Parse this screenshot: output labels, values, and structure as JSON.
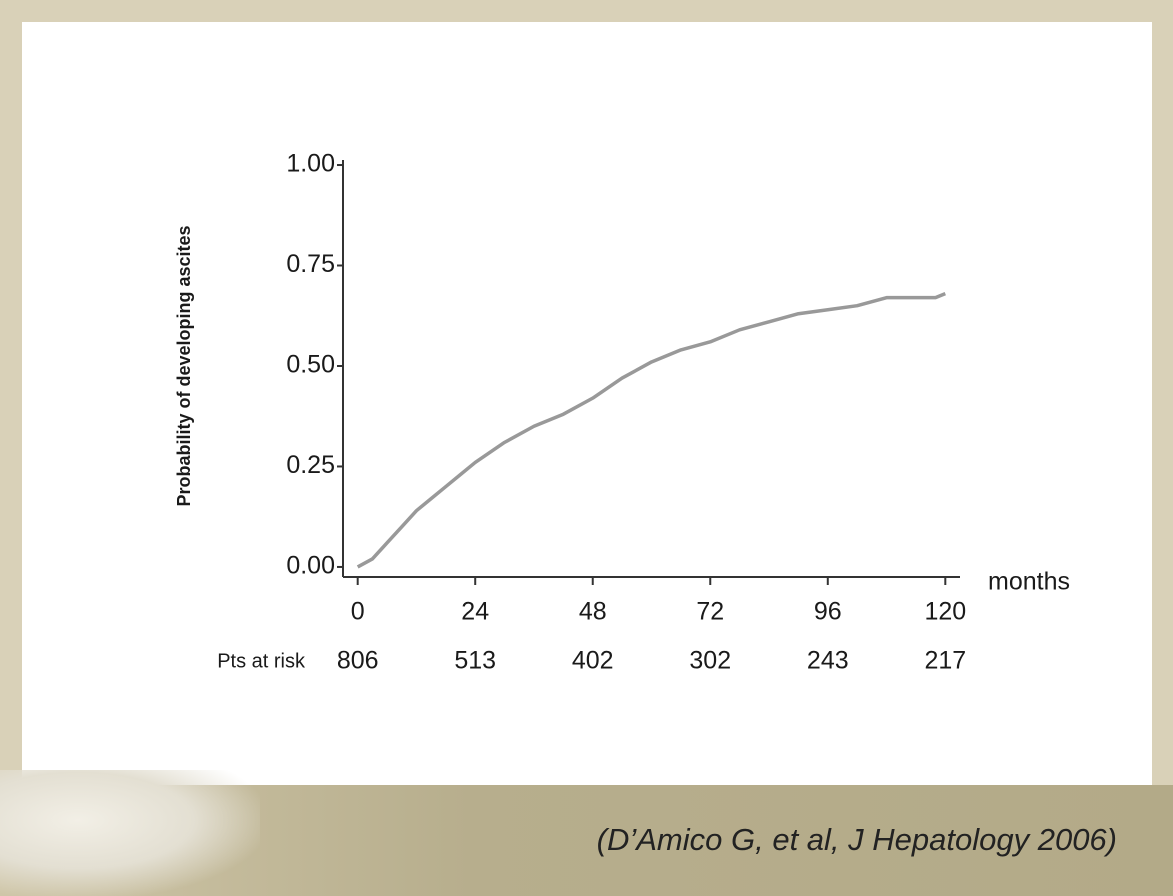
{
  "chart_data": {
    "type": "line",
    "ylabel": "Probability of developing ascites",
    "xlabel": "months",
    "x": [
      0,
      3,
      6,
      9,
      12,
      15,
      18,
      21,
      24,
      30,
      36,
      42,
      48,
      54,
      60,
      66,
      72,
      78,
      84,
      90,
      96,
      102,
      108,
      114,
      118,
      120
    ],
    "series": [
      {
        "color": "#999999",
        "values": [
          0.0,
          0.02,
          0.06,
          0.1,
          0.14,
          0.17,
          0.2,
          0.23,
          0.26,
          0.31,
          0.35,
          0.38,
          0.42,
          0.47,
          0.51,
          0.54,
          0.56,
          0.59,
          0.61,
          0.63,
          0.64,
          0.65,
          0.67,
          0.67,
          0.67,
          0.68
        ]
      }
    ],
    "xlim": [
      -3,
      123
    ],
    "xticks": [
      0,
      24,
      48,
      72,
      96,
      120
    ],
    "ylim": [
      -0.025,
      1.0125
    ],
    "yticks": [
      {
        "value": 0,
        "label": "0.00"
      },
      {
        "value": 0.25,
        "label": "0.25"
      },
      {
        "value": 0.5,
        "label": "0.50"
      },
      {
        "value": 0.75,
        "label": "0.75"
      },
      {
        "value": 1,
        "label": "1.00"
      }
    ],
    "grid": false,
    "at_risk": {
      "label": "Pts at risk",
      "values": [
        806,
        513,
        402,
        302,
        243,
        217
      ]
    }
  },
  "footer": {
    "citation": "(D’Amico G, et al, J Hepatology 2006)"
  }
}
